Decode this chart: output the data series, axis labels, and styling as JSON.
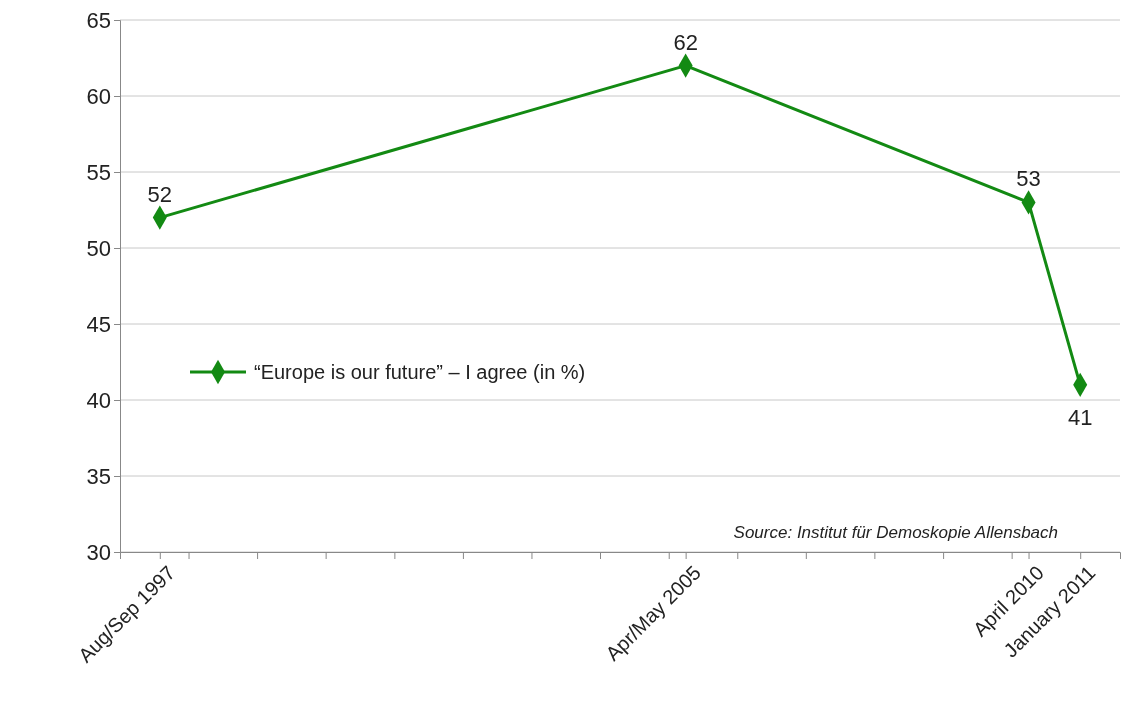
{
  "chart_data": {
    "type": "line",
    "x": [
      "1997-08",
      "2005-04",
      "2010-04",
      "2011-01"
    ],
    "series": [
      {
        "name": "“Europe is our future” – I agree (in %)",
        "color": "#138a13",
        "values": [
          52,
          62,
          53,
          41
        ]
      }
    ],
    "xlim": [
      "1997-01",
      "2011-08"
    ],
    "xticks": [
      {
        "value": "1997-08",
        "label": "Aug/Sep 1997"
      },
      {
        "value": "2005-04",
        "label": "Apr/May 2005"
      },
      {
        "value": "2010-04",
        "label": "April 2010"
      },
      {
        "value": "2011-01",
        "label": "January 2011"
      },
      {
        "value": "1998-01",
        "label": null
      },
      {
        "value": "1999-01",
        "label": null
      },
      {
        "value": "2000-01",
        "label": null
      },
      {
        "value": "2001-01",
        "label": null
      },
      {
        "value": "2002-01",
        "label": null
      },
      {
        "value": "2003-01",
        "label": null
      },
      {
        "value": "2004-01",
        "label": null
      },
      {
        "value": "2005-01",
        "label": null
      },
      {
        "value": "2006-01",
        "label": null
      },
      {
        "value": "2007-01",
        "label": null
      },
      {
        "value": "2008-01",
        "label": null
      },
      {
        "value": "2009-01",
        "label": null
      },
      {
        "value": "2010-01",
        "label": null
      }
    ],
    "ylim": [
      30,
      65
    ],
    "yticks": [
      30,
      35,
      40,
      45,
      50,
      55,
      60,
      65
    ],
    "grid": "y",
    "legend": "left",
    "marker": "diamond",
    "line_style": "solid",
    "data_labels": true,
    "annotations": [
      "Source: Institut für Demoskopie Allensbach"
    ]
  }
}
